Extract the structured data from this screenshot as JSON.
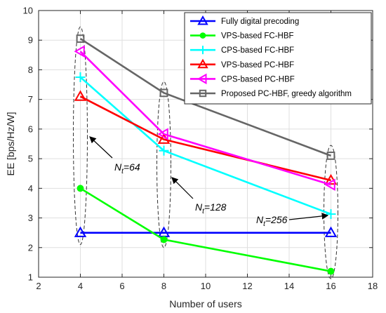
{
  "chart_data": {
    "type": "line",
    "xlabel": "Number of users",
    "ylabel": "EE [bps/Hz/W]",
    "xlim": [
      2,
      18
    ],
    "ylim": [
      1,
      10
    ],
    "x_ticks": [
      2,
      4,
      6,
      8,
      10,
      12,
      14,
      16,
      18
    ],
    "y_ticks": [
      1,
      2,
      3,
      4,
      5,
      6,
      7,
      8,
      9,
      10
    ],
    "grid": true,
    "legend_position": "top-right",
    "x": [
      4,
      8,
      16
    ],
    "series": [
      {
        "name": "Fully digital precoding",
        "color": "#0000ff",
        "marker": "triangle-up",
        "values": [
          2.5,
          2.5,
          2.5
        ]
      },
      {
        "name": "VPS-based FC-HBF",
        "color": "#00ff00",
        "marker": "circle",
        "values": [
          4.0,
          2.27,
          1.2
        ]
      },
      {
        "name": "CPS-based FC-HBF",
        "color": "#00ffff",
        "marker": "plus",
        "values": [
          7.75,
          5.27,
          3.13
        ]
      },
      {
        "name": "VPS-based PC-HBF",
        "color": "#ff0000",
        "marker": "triangle-up",
        "values": [
          7.1,
          5.65,
          4.27
        ]
      },
      {
        "name": "CPS-based PC-HBF",
        "color": "#ff00ff",
        "marker": "triangle-left",
        "values": [
          8.62,
          5.83,
          4.12
        ]
      },
      {
        "name": "Proposed PC-HBF, greedy algorithm",
        "color": "#666666",
        "marker": "square",
        "values": [
          9.05,
          7.22,
          5.1
        ]
      }
    ],
    "annotations": [
      {
        "base": "N",
        "sub": "t",
        "rest": "=64"
      },
      {
        "base": "N",
        "sub": "t",
        "rest": "=128"
      },
      {
        "base": "N",
        "sub": "t",
        "rest": "=256"
      }
    ]
  }
}
